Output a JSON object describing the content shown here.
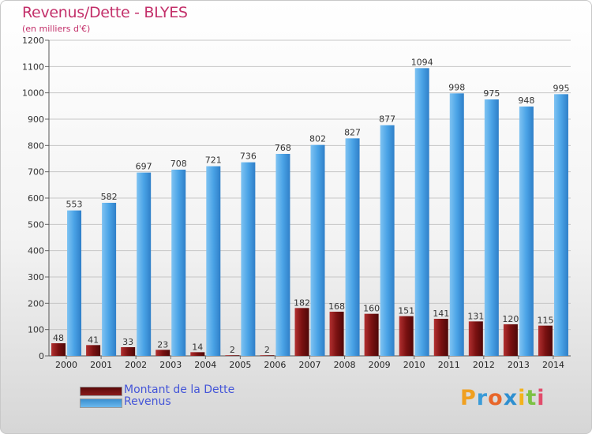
{
  "header": {
    "title": "Revenus/Dette - BLYES",
    "subtitle": "(en milliers d'€)"
  },
  "colors": {
    "dette": "#7a1111",
    "revenus": "#4fa7e6",
    "title": "#c3306a",
    "legend_text": "#4455d8"
  },
  "legend": [
    {
      "label": "Montant de la Dette",
      "color": "#7a1111"
    },
    {
      "label": "Revenus",
      "color": "#4fa7e6"
    }
  ],
  "logo": {
    "text": "Proxiti",
    "letters": [
      "P",
      "r",
      "o",
      "x",
      "i",
      "t",
      "i"
    ],
    "colors": [
      "#f0a020",
      "#3a9bd8",
      "#e8662a",
      "#2e8fd0",
      "#f3b21b",
      "#7cc243",
      "#e24c6b"
    ]
  },
  "chart_data": {
    "type": "bar",
    "title": "Revenus/Dette - BLYES",
    "subtitle": "(en milliers d'€)",
    "categories": [
      "2000",
      "2001",
      "2002",
      "2003",
      "2004",
      "2005",
      "2006",
      "2007",
      "2008",
      "2009",
      "2010",
      "2011",
      "2012",
      "2013",
      "2014"
    ],
    "series": [
      {
        "name": "Montant de la Dette",
        "values": [
          48,
          41,
          33,
          23,
          14,
          2,
          2,
          182,
          168,
          160,
          151,
          141,
          131,
          120,
          115
        ]
      },
      {
        "name": "Revenus",
        "values": [
          553,
          582,
          697,
          708,
          721,
          736,
          768,
          802,
          827,
          877,
          1094,
          998,
          975,
          948,
          995
        ]
      }
    ],
    "ylim": [
      0,
      1200
    ],
    "yticks": [
      0,
      100,
      200,
      300,
      400,
      500,
      600,
      700,
      800,
      900,
      1000,
      1100,
      1200
    ],
    "grid": true,
    "legend_position": "bottom-left"
  }
}
